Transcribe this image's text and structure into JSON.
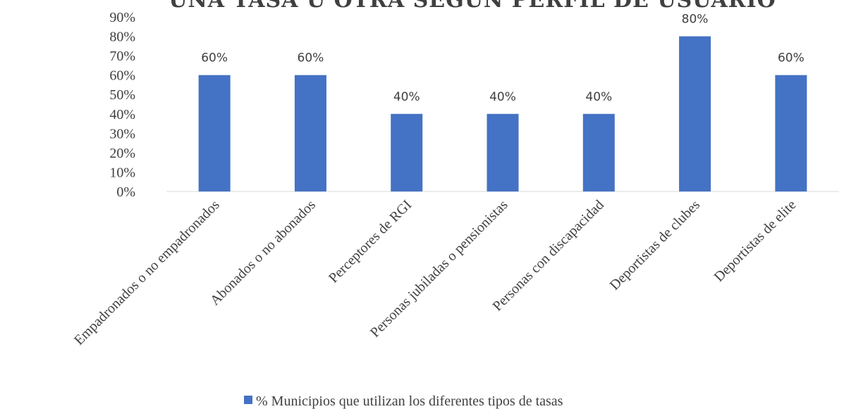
{
  "chart_data": {
    "type": "bar",
    "title": "UNA TASA U OTRA SEGÚN PERFIL DE USUARIO",
    "categories": [
      "Empadronados o no empadronados",
      "Abonados o no abonados",
      "Perceptores de RGI",
      "Personas jubiladas o pensionistas",
      "Personas con discapacidad",
      "Deportistas de clubes",
      "Deportistas de elite"
    ],
    "series": [
      {
        "name": "% Municipios que utilizan los diferentes tipos de tasas",
        "values": [
          60,
          60,
          40,
          40,
          40,
          80,
          60
        ],
        "color": "#4472c4"
      }
    ],
    "data_labels": [
      "60%",
      "60%",
      "40%",
      "40%",
      "40%",
      "80%",
      "60%"
    ],
    "yticks": [
      "0%",
      "10%",
      "20%",
      "30%",
      "40%",
      "50%",
      "60%",
      "70%",
      "80%",
      "90%"
    ],
    "ylim": [
      0,
      90
    ],
    "grid": false,
    "legend_position": "bottom"
  }
}
